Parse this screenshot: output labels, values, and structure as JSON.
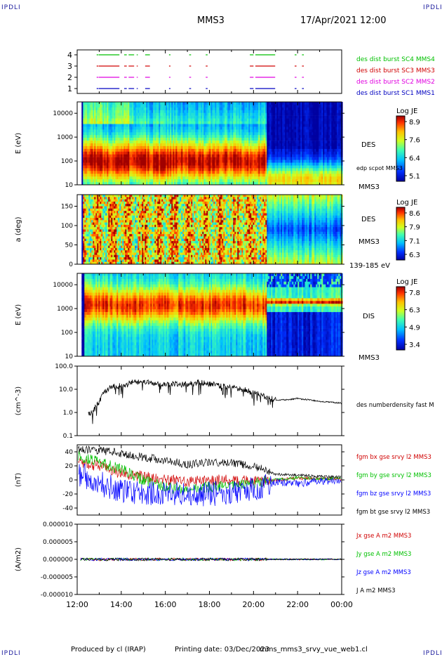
{
  "header": {
    "corner_left": "IPDLI",
    "corner_right": "IPDLI",
    "spacecraft": "MMS3",
    "datetime": "17/Apr/2021 12:00",
    "bottom_left": "IPDLI",
    "bottom_right": "IPDLI"
  },
  "footer": {
    "produced_by": "Produced by cl (IRAP)",
    "printing_date": "Printing date: 03/Dec/2023",
    "script_name": "mms_mms3_srvy_vue_web1.cl"
  },
  "colors": {
    "red": "#d00000",
    "green": "#00c000",
    "blue": "#0000ff",
    "magenta": "#e000e0",
    "black": "#000000",
    "dark_blue": "#00009c"
  },
  "chart_data": [
    {
      "type": "timeline",
      "panel": "burst",
      "x": [
        "12:00",
        "14:00",
        "16:00",
        "18:00",
        "20:00",
        "22:00",
        "00:00"
      ],
      "yticks": [
        "4",
        "3",
        "2",
        "1"
      ],
      "series": [
        {
          "name": "des dist burst SC1 MMS1",
          "level": 1,
          "color": "#0000c0",
          "intervals": [
            [
              "12:53",
              "12:58"
            ],
            [
              "12:59",
              "13:55"
            ],
            [
              "14:08",
              "14:15"
            ],
            [
              "14:20",
              "14:35"
            ],
            [
              "14:42",
              "14:45"
            ],
            [
              "15:05",
              "15:18"
            ],
            [
              "16:10",
              "16:14"
            ],
            [
              "17:05",
              "17:10"
            ],
            [
              "17:50",
              "17:55"
            ],
            [
              "19:50",
              "20:00"
            ],
            [
              "20:05",
              "20:59"
            ],
            [
              "21:52",
              "21:57"
            ],
            [
              "22:12",
              "22:17"
            ]
          ]
        },
        {
          "name": "des dist burst SC2 MMS2",
          "level": 2,
          "color": "#e000e0",
          "intervals": [
            [
              "12:53",
              "12:58"
            ],
            [
              "12:59",
              "13:55"
            ],
            [
              "14:08",
              "14:15"
            ],
            [
              "14:20",
              "14:35"
            ],
            [
              "14:42",
              "14:45"
            ],
            [
              "15:05",
              "15:18"
            ],
            [
              "16:10",
              "16:14"
            ],
            [
              "17:05",
              "17:10"
            ],
            [
              "17:50",
              "17:55"
            ],
            [
              "19:50",
              "20:00"
            ],
            [
              "20:05",
              "20:59"
            ],
            [
              "21:52",
              "21:57"
            ],
            [
              "22:12",
              "22:17"
            ]
          ]
        },
        {
          "name": "des dist burst SC3 MMS3",
          "level": 3,
          "color": "#d00000",
          "intervals": [
            [
              "12:53",
              "12:58"
            ],
            [
              "12:59",
              "13:55"
            ],
            [
              "14:08",
              "14:15"
            ],
            [
              "14:20",
              "14:35"
            ],
            [
              "14:42",
              "14:45"
            ],
            [
              "15:05",
              "15:18"
            ],
            [
              "16:10",
              "16:14"
            ],
            [
              "17:05",
              "17:10"
            ],
            [
              "17:50",
              "17:55"
            ],
            [
              "19:50",
              "20:00"
            ],
            [
              "20:05",
              "20:59"
            ],
            [
              "21:52",
              "21:57"
            ],
            [
              "22:12",
              "22:17"
            ]
          ]
        },
        {
          "name": "des dist burst SC4 MMS4",
          "level": 4,
          "color": "#00c000",
          "intervals": [
            [
              "12:53",
              "12:58"
            ],
            [
              "12:59",
              "13:55"
            ],
            [
              "14:08",
              "14:15"
            ],
            [
              "14:20",
              "14:35"
            ],
            [
              "14:42",
              "14:45"
            ],
            [
              "15:05",
              "15:18"
            ],
            [
              "16:10",
              "16:14"
            ],
            [
              "17:05",
              "17:10"
            ],
            [
              "17:50",
              "17:55"
            ],
            [
              "19:50",
              "20:00"
            ],
            [
              "20:05",
              "20:59"
            ],
            [
              "21:52",
              "21:57"
            ],
            [
              "22:12",
              "22:17"
            ]
          ]
        }
      ]
    },
    {
      "type": "heatmap",
      "panel": "des_energy",
      "ylabel": "E (eV)",
      "yscale": "log",
      "ylim": [
        10,
        30000
      ],
      "yticks": [
        "10000",
        "1000",
        "100",
        "10"
      ],
      "right_labels": [
        "DES",
        "edp scpot MMS3",
        "MMS3"
      ],
      "colorbar": {
        "title": "Log JE",
        "ticks": [
          "8.9",
          "7.6",
          "6.4",
          "5.1"
        ],
        "range": [
          5.1,
          8.9
        ]
      },
      "description_peak_energy_eV": {
        "12:30-20:30": 100,
        "20:30-00:00": 15
      }
    },
    {
      "type": "heatmap",
      "panel": "des_pitch",
      "ylabel": "a (deg)",
      "ylim": [
        0,
        180
      ],
      "yticks": [
        "150",
        "100",
        "50",
        "0"
      ],
      "right_labels": [
        "DES",
        "MMS3",
        "139-185 eV"
      ],
      "colorbar": {
        "title": "Log JE",
        "ticks": [
          "8.6",
          "7.9",
          "7.1",
          "6.3"
        ],
        "range": [
          6.3,
          8.6
        ]
      }
    },
    {
      "type": "heatmap",
      "panel": "dis_energy",
      "ylabel": "E (eV)",
      "yscale": "log",
      "ylim": [
        10,
        30000
      ],
      "yticks": [
        "10000",
        "1000",
        "100",
        "10"
      ],
      "right_labels": [
        "DIS",
        "MMS3"
      ],
      "colorbar": {
        "title": "Log JE",
        "ticks": [
          "7.8",
          "6.3",
          "4.9",
          "3.4"
        ],
        "range": [
          3.4,
          7.8
        ]
      }
    },
    {
      "type": "line",
      "panel": "density",
      "ylabel": "(cm^-3)",
      "yscale": "log",
      "ylim": [
        0.1,
        100
      ],
      "yticks": [
        "100.0",
        "10.0",
        "1.0",
        "0.1"
      ],
      "series": [
        {
          "name": "des numberdensity fast M",
          "color": "#000000",
          "x": [
            "12:30",
            "12:45",
            "13:00",
            "13:15",
            "13:30",
            "14:00",
            "14:30",
            "15:00",
            "15:30",
            "16:00",
            "16:30",
            "17:00",
            "17:30",
            "18:00",
            "18:30",
            "19:00",
            "19:30",
            "20:00",
            "20:30",
            "21:00",
            "21:30",
            "22:00",
            "22:30",
            "23:00",
            "23:30",
            "00:00"
          ],
          "y": [
            0.8,
            1.2,
            3,
            8,
            12,
            15,
            20,
            22,
            18,
            16,
            18,
            16,
            20,
            17,
            14,
            12,
            10,
            7,
            5,
            3.5,
            3.5,
            4,
            3.5,
            3,
            2.8,
            2.5
          ]
        }
      ]
    },
    {
      "type": "line",
      "panel": "fgm",
      "ylabel": "(nT)",
      "ylim": [
        -50,
        50
      ],
      "yticks": [
        "40",
        "20",
        "0",
        "-20",
        "-40"
      ],
      "series": [
        {
          "name": "fgm bx gse srvy l2 MMS3",
          "color": "#d00000",
          "x": [
            "12:00",
            "13:00",
            "14:00",
            "15:00",
            "16:00",
            "17:00",
            "18:00",
            "19:00",
            "20:00",
            "21:00",
            "22:00",
            "23:00",
            "00:00"
          ],
          "y": [
            25,
            20,
            10,
            5,
            0,
            -3,
            0,
            0,
            -2,
            0,
            2,
            2,
            1
          ]
        },
        {
          "name": "fgm by gse srvy l2 MMS3",
          "color": "#00c000",
          "x": [
            "12:00",
            "13:00",
            "14:00",
            "15:00",
            "16:00",
            "17:00",
            "18:00",
            "19:00",
            "20:00",
            "21:00",
            "22:00",
            "23:00",
            "00:00"
          ],
          "y": [
            35,
            25,
            15,
            0,
            -10,
            -15,
            -10,
            -8,
            -5,
            0,
            3,
            2,
            2
          ]
        },
        {
          "name": "fgm bz gse srvy l2 MMS3",
          "color": "#0000ff",
          "x": [
            "12:00",
            "13:00",
            "14:00",
            "15:00",
            "16:00",
            "17:00",
            "18:00",
            "19:00",
            "20:00",
            "21:00",
            "22:00",
            "23:00",
            "00:00"
          ],
          "y": [
            10,
            -5,
            -15,
            -20,
            -18,
            -22,
            -20,
            -18,
            -12,
            -3,
            -5,
            -2,
            -1
          ]
        },
        {
          "name": "fgm bt gse srvy l2 MMS3",
          "color": "#000000",
          "x": [
            "12:00",
            "13:00",
            "14:00",
            "15:00",
            "16:00",
            "17:00",
            "18:00",
            "19:00",
            "20:00",
            "21:00",
            "22:00",
            "23:00",
            "00:00"
          ],
          "y": [
            45,
            42,
            38,
            32,
            28,
            22,
            25,
            24,
            20,
            8,
            7,
            5,
            4
          ]
        }
      ]
    },
    {
      "type": "line",
      "panel": "current",
      "ylabel": "(A/m2)",
      "ylim": [
        -1e-05,
        1e-05
      ],
      "yticks": [
        "0.000010",
        "0.000005",
        "0.000000",
        "-0.000005",
        "-0.000010"
      ],
      "series": [
        {
          "name": "Jx gse A m2 MMS3",
          "color": "#d00000"
        },
        {
          "name": "Jy gse A m2 MMS3",
          "color": "#00c000"
        },
        {
          "name": "Jz gse A m2 MMS3",
          "color": "#0000ff"
        },
        {
          "name": "J A m2 MMS3",
          "color": "#000000"
        }
      ],
      "xlabel_ticks": [
        "12:00",
        "14:00",
        "16:00",
        "18:00",
        "20:00",
        "22:00",
        "00:00"
      ]
    }
  ]
}
